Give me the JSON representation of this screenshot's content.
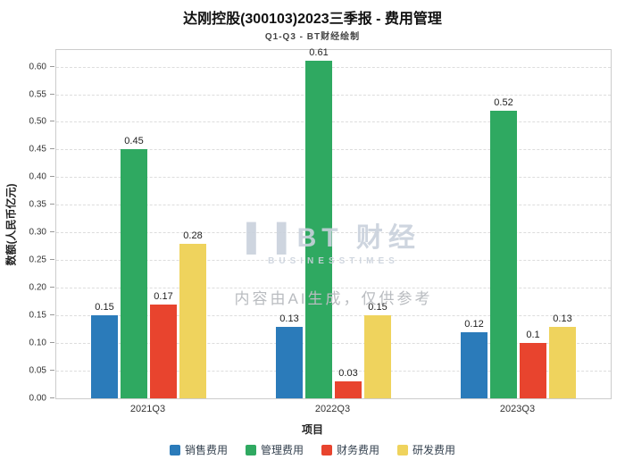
{
  "chart_data": {
    "type": "bar",
    "title": "达刚控股(300103)2023三季报 - 费用管理",
    "subtitle": "Q1-Q3 - BT财经绘制",
    "xlabel": "项目",
    "ylabel": "数额(人民币亿元)",
    "categories": [
      "2021Q3",
      "2022Q3",
      "2023Q3"
    ],
    "series": [
      {
        "name": "销售费用",
        "color": "#2b7bba",
        "values": [
          0.15,
          0.13,
          0.12
        ]
      },
      {
        "name": "管理费用",
        "color": "#2fa961",
        "values": [
          0.45,
          0.61,
          0.52
        ]
      },
      {
        "name": "财务费用",
        "color": "#e8442e",
        "values": [
          0.17,
          0.03,
          0.1
        ]
      },
      {
        "name": "研发费用",
        "color": "#efd35d",
        "values": [
          0.28,
          0.15,
          0.13
        ]
      }
    ],
    "ylim": [
      0,
      0.63
    ],
    "ytick_step": 0.05,
    "ytick_max": 0.6,
    "grid": true,
    "legend_position": "bottom"
  },
  "watermark": {
    "logo_icon": "▌▐",
    "logo_text": "BT 财经",
    "logo_sub": "BUSINESSTIMES",
    "disclaimer": "内容由AI生成，仅供参考"
  }
}
